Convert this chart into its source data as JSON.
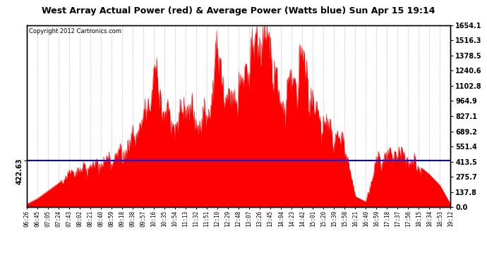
{
  "title": "West Array Actual Power (red) & Average Power (Watts blue) Sun Apr 15 19:14",
  "copyright": "Copyright 2012 Cartronics.com",
  "avg_power": 422.63,
  "ymax": 1654.1,
  "ymin": 0.0,
  "yticks_right": [
    0.0,
    137.8,
    275.7,
    413.5,
    551.4,
    689.2,
    827.1,
    964.9,
    1102.8,
    1240.6,
    1378.5,
    1516.3,
    1654.1
  ],
  "ytick_left_label": "422.63",
  "bg_color": "#ffffff",
  "plot_bg": "#ffffff",
  "grid_color": "#aaaaaa",
  "fill_color": "#ff0000",
  "line_color": "#ff0000",
  "avg_line_color": "#0000ff",
  "x_labels": [
    "06:26",
    "06:45",
    "07:05",
    "07:24",
    "07:43",
    "08:02",
    "08:21",
    "08:40",
    "08:59",
    "09:18",
    "09:38",
    "09:57",
    "10:16",
    "10:35",
    "10:54",
    "11:13",
    "11:32",
    "11:51",
    "12:10",
    "12:29",
    "12:48",
    "13:07",
    "13:26",
    "13:45",
    "14:04",
    "14:23",
    "14:42",
    "15:01",
    "15:20",
    "15:39",
    "15:58",
    "16:21",
    "16:40",
    "16:59",
    "17:18",
    "17:37",
    "17:56",
    "18:15",
    "18:34",
    "18:53",
    "19:12"
  ],
  "power": [
    30,
    80,
    150,
    220,
    310,
    350,
    380,
    420,
    450,
    500,
    650,
    820,
    1250,
    900,
    750,
    980,
    800,
    850,
    1450,
    950,
    1100,
    1350,
    1620,
    1540,
    900,
    1150,
    1380,
    950,
    800,
    680,
    600,
    100,
    50,
    430,
    480,
    520,
    450,
    380,
    300,
    200,
    30
  ]
}
